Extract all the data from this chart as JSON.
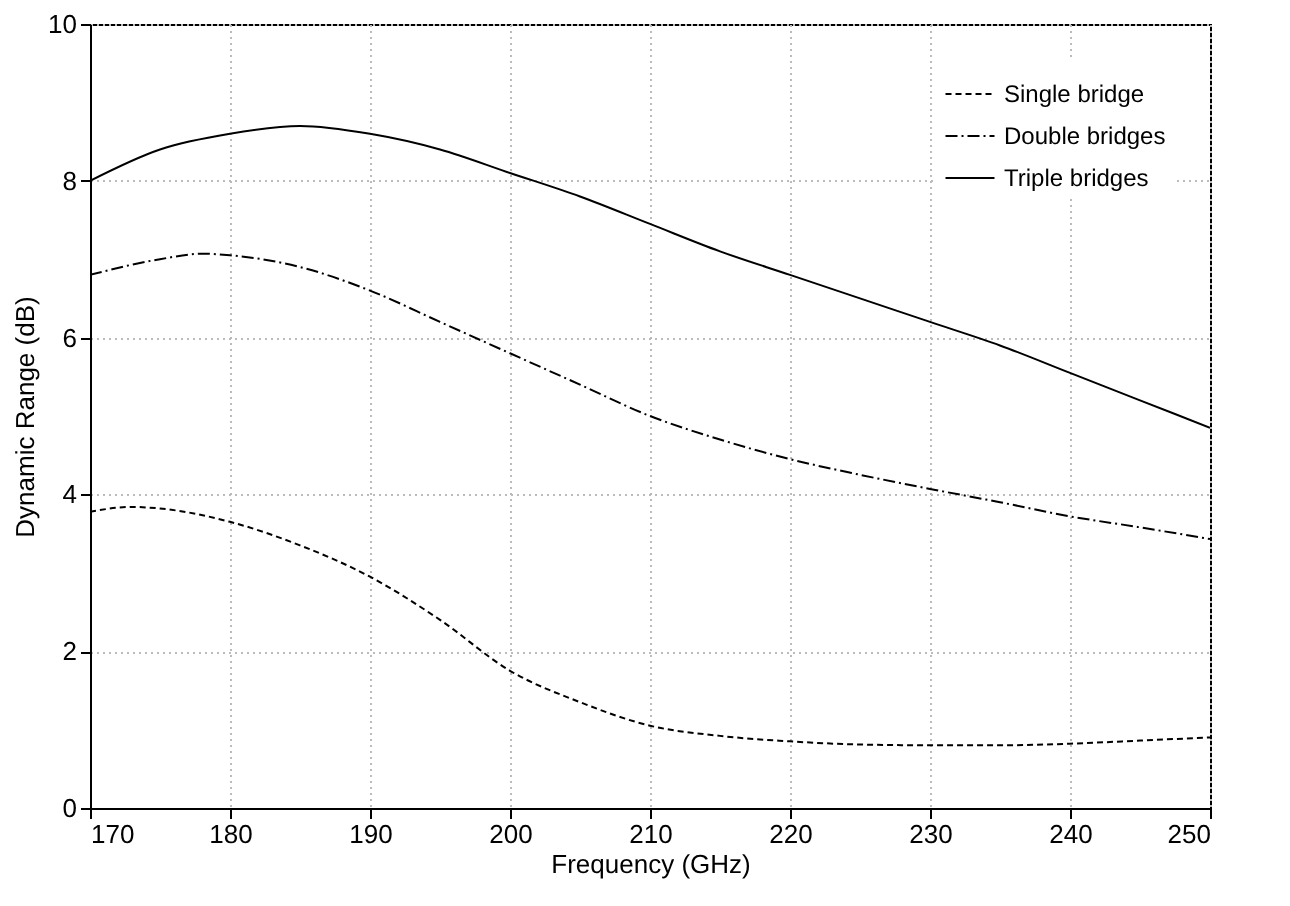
{
  "chart_data": {
    "type": "line",
    "xlabel": "Frequency (GHz)",
    "ylabel": "Dynamic Range (dB)",
    "xlim": [
      170,
      250
    ],
    "xticks": [
      170,
      180,
      190,
      200,
      210,
      220,
      230,
      240,
      250
    ],
    "ylim": [
      0,
      10
    ],
    "yticks": [
      0,
      2,
      4,
      6,
      8,
      10
    ],
    "grid": true,
    "legend": "top right",
    "marker": "none",
    "series": [
      {
        "name": "Single bridge",
        "color": "#000000",
        "line_style": "dashed",
        "x": [
          170,
          173,
          175,
          180,
          185,
          190,
          195,
          200,
          205,
          210,
          215,
          220,
          225,
          230,
          235,
          240,
          245,
          250
        ],
        "values": [
          3.78,
          3.84,
          3.82,
          3.65,
          3.35,
          2.95,
          2.4,
          1.75,
          1.35,
          1.05,
          0.92,
          0.85,
          0.81,
          0.8,
          0.8,
          0.82,
          0.86,
          0.9
        ]
      },
      {
        "name": "Double bridges",
        "color": "#000000",
        "line_style": "dashdot",
        "x": [
          170,
          175,
          178,
          180,
          185,
          190,
          195,
          200,
          205,
          210,
          215,
          220,
          225,
          230,
          235,
          240,
          245,
          250
        ],
        "values": [
          6.8,
          7.0,
          7.07,
          7.05,
          6.9,
          6.6,
          6.2,
          5.8,
          5.4,
          5.0,
          4.7,
          4.45,
          4.25,
          4.07,
          3.9,
          3.72,
          3.58,
          3.43
        ]
      },
      {
        "name": "Triple bridges",
        "color": "#000000",
        "line_style": "solid",
        "x": [
          170,
          175,
          180,
          185,
          190,
          195,
          200,
          205,
          210,
          215,
          220,
          225,
          230,
          235,
          240,
          245,
          250
        ],
        "values": [
          8.0,
          8.4,
          8.6,
          8.7,
          8.6,
          8.4,
          8.1,
          7.8,
          7.45,
          7.1,
          6.8,
          6.5,
          6.2,
          5.9,
          5.55,
          5.2,
          4.85
        ]
      }
    ]
  }
}
